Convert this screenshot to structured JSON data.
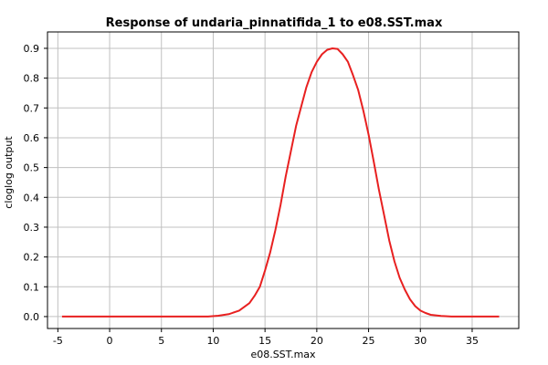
{
  "chart_data": {
    "type": "line",
    "title": "Response of undaria_pinnatifida_1 to e08.SST.max",
    "xlabel": "e08.SST.max",
    "ylabel": "cloglog output",
    "xlim": [
      -6.0,
      39.5
    ],
    "ylim": [
      -0.04,
      0.955
    ],
    "grid": true,
    "x_ticks": [
      -5,
      0,
      5,
      10,
      15,
      20,
      25,
      30,
      35
    ],
    "y_ticks": [
      0.0,
      0.1,
      0.2,
      0.3,
      0.4,
      0.5,
      0.6,
      0.7,
      0.8,
      0.9
    ],
    "y_tick_labels": [
      "0.0",
      "0.1",
      "0.2",
      "0.3",
      "0.4",
      "0.5",
      "0.6",
      "0.7",
      "0.8",
      "0.9"
    ],
    "series": [
      {
        "color": "#e82020",
        "x": [
          -4.6,
          0,
          5,
          9.5,
          10.5,
          11.5,
          12.5,
          13.5,
          14.0,
          14.5,
          15.0,
          15.5,
          16.0,
          16.5,
          17.0,
          17.5,
          18.0,
          18.5,
          19.0,
          19.5,
          20.0,
          20.5,
          21.0,
          21.5,
          22.0,
          22.5,
          23.0,
          23.5,
          24.0,
          24.5,
          25.0,
          25.5,
          26.0,
          26.5,
          27.0,
          27.5,
          28.0,
          28.5,
          29.0,
          29.5,
          30.0,
          30.5,
          31.0,
          32.0,
          33.0,
          34.0,
          35.0,
          37.6
        ],
        "y": [
          0.0,
          0.0,
          0.0,
          0.0,
          0.003,
          0.008,
          0.02,
          0.045,
          0.07,
          0.1,
          0.155,
          0.215,
          0.29,
          0.375,
          0.47,
          0.555,
          0.64,
          0.705,
          0.77,
          0.82,
          0.855,
          0.88,
          0.895,
          0.9,
          0.898,
          0.88,
          0.855,
          0.81,
          0.76,
          0.69,
          0.61,
          0.52,
          0.425,
          0.34,
          0.255,
          0.185,
          0.13,
          0.09,
          0.058,
          0.035,
          0.02,
          0.012,
          0.006,
          0.002,
          0.0,
          0.0,
          0.0,
          0.0
        ]
      }
    ]
  }
}
